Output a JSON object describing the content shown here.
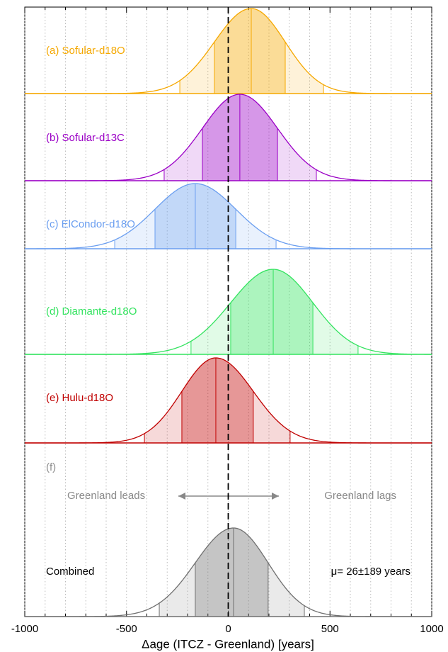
{
  "chart_data": {
    "type": "density",
    "xlabel": "Δage (ITCZ - Greenland) [years]",
    "xlim": [
      -1000,
      1000
    ],
    "xticks": [
      -1000,
      -500,
      0,
      500,
      1000
    ],
    "xminor_ticks": [
      -900,
      -800,
      -700,
      -600,
      -400,
      -300,
      -200,
      -100,
      100,
      200,
      300,
      400,
      600,
      700,
      800,
      900
    ],
    "grid": true,
    "vline": 0,
    "series": [
      {
        "name": "(a) Sofular-d18O",
        "color": "#f5a800",
        "values": [
          -238,
          -68,
          113,
          280,
          468
        ]
      },
      {
        "name": "(b) Sofular-d13C",
        "color": "#9b00c6",
        "values": [
          -315,
          -127,
          57,
          242,
          433
        ]
      },
      {
        "name": "(c) ElCondor-d18O",
        "color": "#6a9ef0",
        "values": [
          -558,
          -360,
          -162,
          37,
          235
        ]
      },
      {
        "name": "(d) Diamante-d18O",
        "color": "#33e35f",
        "values": [
          -183,
          12,
          221,
          416,
          638
        ]
      },
      {
        "name": "(e) Hulu-d18O",
        "color": "#c00000",
        "values": [
          -412,
          -228,
          -61,
          123,
          304
        ]
      },
      {
        "name": "(f)",
        "color": "#707070",
        "values": [
          -339,
          -162,
          26,
          196,
          374
        ]
      }
    ],
    "annotations": {
      "leads": "Greenland leads",
      "lags": "Greenland lags",
      "combined": "Combined",
      "mu": "μ= 26±189 years"
    }
  }
}
